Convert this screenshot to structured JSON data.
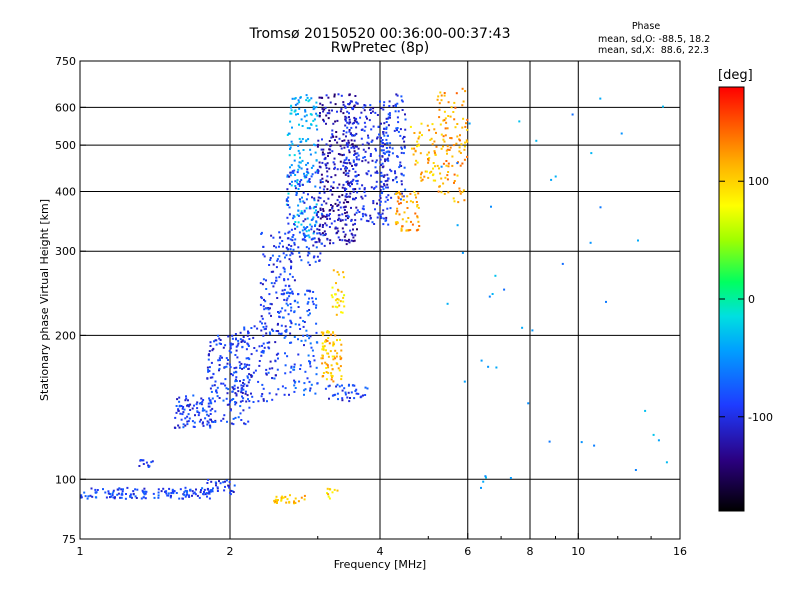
{
  "header": {
    "title_line1": "Tromsø 20150520 00:36:00-00:37:43",
    "title_line2": "RwPretec (8p)",
    "phase_title": "Phase",
    "phase_o_line": "mean, sd,O: -88.5, 18.2",
    "phase_x_line": "mean, sd,X:  88.6, 22.3"
  },
  "colorbar": {
    "label": "[deg]",
    "range": [
      -180,
      180
    ],
    "ticks": [
      {
        "value": 100,
        "label": "100"
      },
      {
        "value": 0,
        "label": "0"
      },
      {
        "value": -100,
        "label": "-100"
      }
    ]
  },
  "chart_data": {
    "type": "scatter",
    "title": "Tromsø 20150520 00:36:00-00:37:43",
    "subtitle": "RwPretec (8p)",
    "xlabel": "Frequency [MHz]",
    "ylabel": "Stationary phase Virtual Height [km]",
    "x_scale": "log",
    "y_scale": "log",
    "xlim": [
      1,
      16
    ],
    "ylim": [
      75,
      750
    ],
    "x_ticks": [
      {
        "value": 1,
        "label": "1"
      },
      {
        "value": 2,
        "label": "2"
      },
      {
        "value": 4,
        "label": "4"
      },
      {
        "value": 6,
        "label": "6"
      },
      {
        "value": 8,
        "label": "8"
      },
      {
        "value": 10,
        "label": "10"
      },
      {
        "value": 16,
        "label": "16"
      }
    ],
    "x_grid": [
      2,
      4,
      6,
      8,
      10
    ],
    "y_ticks": [
      {
        "value": 75,
        "label": "75"
      },
      {
        "value": 100,
        "label": "100"
      },
      {
        "value": 200,
        "label": "200"
      },
      {
        "value": 300,
        "label": "300"
      },
      {
        "value": 400,
        "label": "400"
      },
      {
        "value": 500,
        "label": "500"
      },
      {
        "value": 600,
        "label": "600"
      },
      {
        "value": 750,
        "label": "750"
      }
    ],
    "y_grid": [
      100,
      200,
      300,
      400,
      500,
      600
    ],
    "grid": true,
    "color_variable": "phase [deg]",
    "clusters": [
      {
        "x_range": [
          1.0,
          1.85
        ],
        "y_range": [
          91,
          96
        ],
        "phase": -95,
        "count": 150
      },
      {
        "x_range": [
          1.8,
          2.05
        ],
        "y_range": [
          93,
          100
        ],
        "phase": -100,
        "count": 30
      },
      {
        "x_range": [
          1.3,
          1.4
        ],
        "y_range": [
          106,
          110
        ],
        "phase": -100,
        "count": 12
      },
      {
        "x_range": [
          1.55,
          1.85
        ],
        "y_range": [
          128,
          150
        ],
        "phase": -100,
        "count": 90
      },
      {
        "x_range": [
          1.8,
          2.2
        ],
        "y_range": [
          130,
          200
        ],
        "phase": -100,
        "count": 170
      },
      {
        "x_range": [
          2.0,
          2.5
        ],
        "y_range": [
          145,
          210
        ],
        "phase": -100,
        "count": 120
      },
      {
        "x_range": [
          2.3,
          2.7
        ],
        "y_range": [
          200,
          330
        ],
        "phase": -100,
        "count": 130
      },
      {
        "x_range": [
          2.55,
          3.0
        ],
        "y_range": [
          150,
          250
        ],
        "phase": -90,
        "count": 120
      },
      {
        "x_range": [
          2.6,
          3.0
        ],
        "y_range": [
          320,
          640
        ],
        "phase": -40,
        "count": 160
      },
      {
        "x_range": [
          2.6,
          3.1
        ],
        "y_range": [
          280,
          450
        ],
        "phase": -100,
        "count": 140
      },
      {
        "x_range": [
          3.0,
          3.6
        ],
        "y_range": [
          310,
          640
        ],
        "phase": -125,
        "count": 320
      },
      {
        "x_range": [
          3.4,
          4.2
        ],
        "y_range": [
          340,
          620
        ],
        "phase": -110,
        "count": 240
      },
      {
        "x_range": [
          4.0,
          4.5
        ],
        "y_range": [
          380,
          640
        ],
        "phase": -100,
        "count": 120
      },
      {
        "x_range": [
          3.05,
          3.35
        ],
        "y_range": [
          160,
          205
        ],
        "phase": 110,
        "count": 80
      },
      {
        "x_range": [
          3.2,
          3.4
        ],
        "y_range": [
          220,
          275
        ],
        "phase": 95,
        "count": 30
      },
      {
        "x_range": [
          3.1,
          3.8
        ],
        "y_range": [
          145,
          158
        ],
        "phase": -100,
        "count": 40
      },
      {
        "x_range": [
          4.3,
          4.8
        ],
        "y_range": [
          330,
          400
        ],
        "phase": 120,
        "count": 60
      },
      {
        "x_range": [
          4.6,
          5.2
        ],
        "y_range": [
          420,
          560
        ],
        "phase": 110,
        "count": 60
      },
      {
        "x_range": [
          5.2,
          6.0
        ],
        "y_range": [
          380,
          660
        ],
        "phase": 120,
        "count": 110
      },
      {
        "x_range": [
          2.45,
          2.85
        ],
        "y_range": [
          89,
          93
        ],
        "phase": 110,
        "count": 30
      },
      {
        "x_range": [
          3.1,
          3.3
        ],
        "y_range": [
          91,
          96
        ],
        "phase": 100,
        "count": 10
      },
      {
        "x_range": [
          5.3,
          15.5
        ],
        "y_range": [
          90,
          640
        ],
        "phase": -50,
        "count": 45
      }
    ]
  }
}
